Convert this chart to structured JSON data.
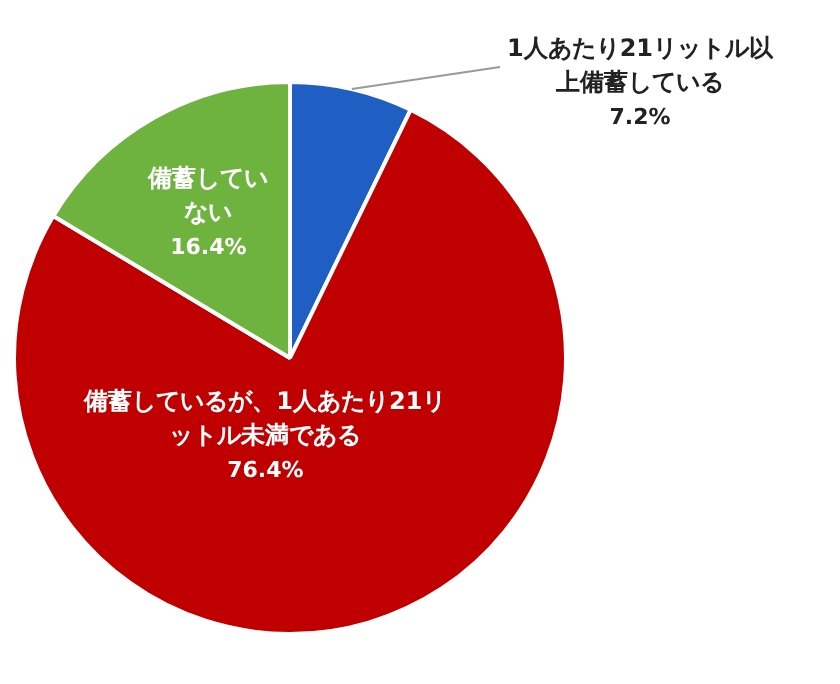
{
  "chart_data": {
    "type": "pie",
    "categories": [
      "1人あたり21リットル以上備蓄している",
      "備蓄しているが、1人あたり21リットル未満である",
      "備蓄していない"
    ],
    "values": [
      7.2,
      76.4,
      16.4
    ],
    "colors": [
      "#1f5fc4",
      "#c00000",
      "#6fb33f"
    ],
    "value_labels": [
      "7.2%",
      "76.4%",
      "16.4%"
    ],
    "legend": false
  }
}
